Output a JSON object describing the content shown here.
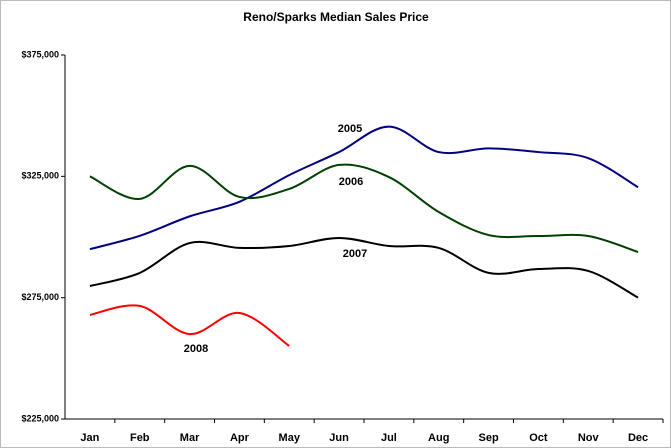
{
  "chart_data": {
    "type": "line",
    "title": "Reno/Sparks Median Sales Price",
    "categories": [
      "Jan",
      "Feb",
      "Mar",
      "Apr",
      "May",
      "Jun",
      "Jul",
      "Aug",
      "Sep",
      "Oct",
      "Nov",
      "Dec"
    ],
    "series": [
      {
        "name": "2005",
        "color": "#000080",
        "values": [
          295000,
          300500,
          308500,
          314500,
          325500,
          335000,
          345500,
          335000,
          336500,
          335000,
          332500,
          320500
        ]
      },
      {
        "name": "2006",
        "color": "#004000",
        "values": [
          325000,
          315700,
          329300,
          316500,
          319800,
          329700,
          324700,
          310300,
          300800,
          300400,
          300400,
          293800
        ]
      },
      {
        "name": "2007",
        "color": "#000000",
        "values": [
          279800,
          285200,
          297500,
          295500,
          296300,
          299600,
          296300,
          295500,
          285200,
          286800,
          286000,
          275000
        ]
      },
      {
        "name": "2008",
        "color": "#ff0000",
        "values": [
          267900,
          271600,
          260000,
          268700,
          255100,
          null,
          null,
          null,
          null,
          null,
          null,
          null
        ]
      }
    ],
    "ylim": [
      225000,
      375000
    ],
    "yticks": [
      {
        "value": 225000,
        "label": "$225,000"
      },
      {
        "value": 275000,
        "label": "$275,000"
      },
      {
        "value": 325000,
        "label": "$325,000"
      },
      {
        "value": 375000,
        "label": "$375,000"
      }
    ],
    "grid": false
  }
}
